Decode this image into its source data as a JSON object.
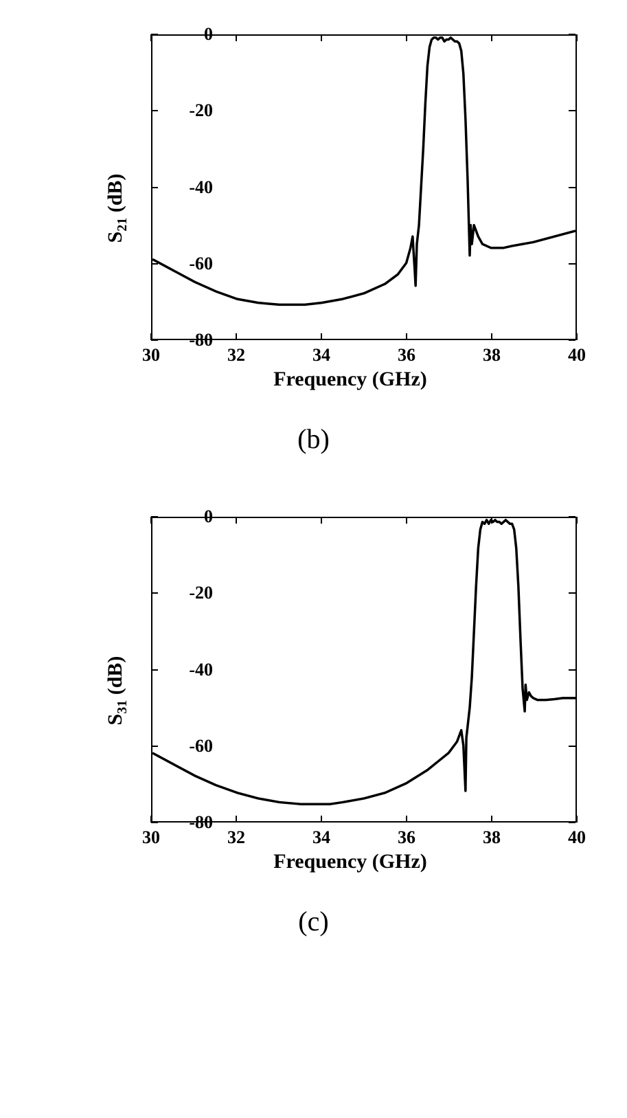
{
  "charts": [
    {
      "id": "chart_b",
      "type": "line",
      "xlabel": "Frequency (GHz)",
      "ylabel_main": "S",
      "ylabel_sub": "21",
      "ylabel_unit": " (dB)",
      "xlim": [
        30,
        40
      ],
      "ylim": [
        -80,
        0
      ],
      "xtick_step": 2,
      "ytick_step": 20,
      "xticks": [
        30,
        32,
        34,
        36,
        38,
        40
      ],
      "yticks": [
        0,
        -20,
        -40,
        -60,
        -80
      ],
      "background_color": "#ffffff",
      "border_color": "#000000",
      "line_color": "#000000",
      "line_width": 3.5,
      "tick_fontsize": 26,
      "label_fontsize": 30,
      "caption": "(b)",
      "caption_fontsize": 40,
      "series": [
        {
          "x": [
            30.0,
            30.5,
            31.0,
            31.5,
            32.0,
            32.5,
            33.0,
            33.3,
            33.6,
            34.0,
            34.5,
            35.0,
            35.5,
            35.8,
            36.0,
            36.1,
            36.15,
            36.2,
            36.22,
            36.25,
            36.3,
            36.35,
            36.4,
            36.45,
            36.5,
            36.55,
            36.6,
            36.65,
            36.7,
            36.75,
            36.8,
            36.85,
            36.9,
            36.95,
            37.0,
            37.05,
            37.1,
            37.15,
            37.2,
            37.25,
            37.3,
            37.35,
            37.4,
            37.45,
            37.5,
            37.52,
            37.55,
            37.6,
            37.7,
            37.8,
            38.0,
            38.3,
            38.5,
            39.0,
            39.5,
            40.0
          ],
          "y": [
            -59.0,
            -62.0,
            -65.0,
            -67.5,
            -69.5,
            -70.5,
            -71.0,
            -71.0,
            -71.0,
            -70.5,
            -69.5,
            -68.0,
            -65.5,
            -63.0,
            -60.0,
            -56.0,
            -53.0,
            -62.0,
            -66.0,
            -55.0,
            -50.0,
            -40.0,
            -30.0,
            -18.0,
            -8.0,
            -3.0,
            -1.0,
            -0.5,
            -0.5,
            -1.0,
            -0.5,
            -0.5,
            -1.5,
            -1.0,
            -1.0,
            -0.5,
            -1.0,
            -1.5,
            -1.5,
            -2.0,
            -4.0,
            -10.0,
            -22.0,
            -38.0,
            -58.0,
            -50.0,
            -55.0,
            -50.0,
            -53.0,
            -55.0,
            -56.0,
            -56.0,
            -55.5,
            -54.5,
            -53.0,
            -51.5
          ]
        }
      ]
    },
    {
      "id": "chart_c",
      "type": "line",
      "xlabel": "Frequency (GHz)",
      "ylabel_main": "S",
      "ylabel_sub": "31",
      "ylabel_unit": " (dB)",
      "xlim": [
        30,
        40
      ],
      "ylim": [
        -80,
        0
      ],
      "xtick_step": 2,
      "ytick_step": 20,
      "xticks": [
        30,
        32,
        34,
        36,
        38,
        40
      ],
      "yticks": [
        0,
        -20,
        -40,
        -60,
        -80
      ],
      "background_color": "#ffffff",
      "border_color": "#000000",
      "line_color": "#000000",
      "line_width": 3.5,
      "tick_fontsize": 26,
      "label_fontsize": 30,
      "caption": "(c)",
      "caption_fontsize": 40,
      "series": [
        {
          "x": [
            30.0,
            30.5,
            31.0,
            31.5,
            32.0,
            32.5,
            33.0,
            33.5,
            34.0,
            34.2,
            34.5,
            35.0,
            35.5,
            36.0,
            36.5,
            37.0,
            37.2,
            37.3,
            37.35,
            37.4,
            37.42,
            37.45,
            37.5,
            37.55,
            37.6,
            37.65,
            37.7,
            37.75,
            37.8,
            37.85,
            37.9,
            37.95,
            38.0,
            38.05,
            38.1,
            38.15,
            38.2,
            38.25,
            38.3,
            38.35,
            38.4,
            38.45,
            38.5,
            38.55,
            38.6,
            38.65,
            38.7,
            38.75,
            38.8,
            38.82,
            38.85,
            38.9,
            38.95,
            39.0,
            39.1,
            39.3,
            39.5,
            39.7,
            40.0
          ],
          "y": [
            -62.0,
            -65.0,
            -68.0,
            -70.5,
            -72.5,
            -74.0,
            -75.0,
            -75.5,
            -75.5,
            -75.5,
            -75.0,
            -74.0,
            -72.5,
            -70.0,
            -66.5,
            -62.0,
            -59.0,
            -56.0,
            -60.0,
            -72.0,
            -58.0,
            -55.0,
            -50.0,
            -42.0,
            -30.0,
            -18.0,
            -8.0,
            -3.0,
            -1.0,
            -1.5,
            -0.5,
            -1.5,
            -0.5,
            -1.0,
            -0.5,
            -1.0,
            -1.0,
            -1.5,
            -1.0,
            -0.5,
            -1.0,
            -1.5,
            -1.5,
            -3.0,
            -8.0,
            -18.0,
            -32.0,
            -45.0,
            -51.0,
            -44.0,
            -48.0,
            -46.0,
            -47.0,
            -47.5,
            -48.0,
            -48.0,
            -47.8,
            -47.5,
            -47.5
          ]
        }
      ]
    }
  ]
}
